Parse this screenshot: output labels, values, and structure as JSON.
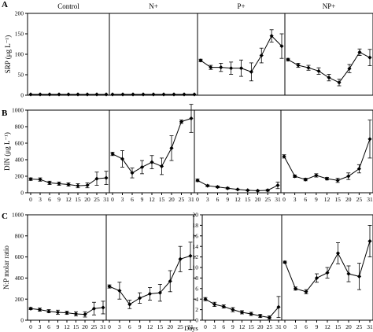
{
  "chart_data": {
    "type": "line",
    "x_ticks": [
      0,
      3,
      6,
      9,
      12,
      15,
      20,
      25,
      31
    ],
    "xlabel": "Days",
    "error_bar_shape": "capped",
    "colors": {
      "line": "#000000",
      "marker": "#000000",
      "frame": "#000000",
      "background": "#ffffff"
    },
    "rows": [
      {
        "label": "A",
        "ylabel": "SRP (μg L⁻¹)",
        "ylim": [
          0,
          200
        ],
        "yticks": [
          0,
          50,
          100,
          150,
          200
        ],
        "panels": [
          {
            "title": "Control",
            "x": [
              0,
              3,
              6,
              9,
              12,
              15,
              20,
              25,
              31
            ],
            "y": [
              2,
              2,
              2,
              2,
              2,
              2,
              2,
              2,
              2
            ],
            "err": [
              0,
              0,
              0,
              0,
              0,
              0,
              0,
              0,
              0
            ]
          },
          {
            "title": "N+",
            "x": [
              0,
              3,
              6,
              9,
              12,
              15,
              20,
              25,
              31
            ],
            "y": [
              2,
              2,
              2,
              2,
              2,
              2,
              2,
              2,
              2
            ],
            "err": [
              0,
              0,
              0,
              0,
              0,
              0,
              0,
              0,
              0
            ]
          },
          {
            "title": "P+",
            "x": [
              0,
              3,
              6,
              9,
              12,
              15,
              20,
              25,
              31
            ],
            "y": [
              85,
              68,
              68,
              66,
              66,
              57,
              97,
              145,
              120
            ],
            "err": [
              3,
              5,
              10,
              15,
              20,
              22,
              18,
              15,
              30
            ]
          },
          {
            "title": "NP+",
            "x": [
              0,
              3,
              6,
              9,
              12,
              15,
              20,
              25,
              31
            ],
            "y": [
              87,
              73,
              67,
              59,
              43,
              31,
              65,
              105,
              92
            ],
            "err": [
              3,
              5,
              6,
              8,
              8,
              8,
              10,
              8,
              20
            ]
          }
        ]
      },
      {
        "label": "B",
        "ylabel": "DIN (μg L⁻¹)",
        "ylim": [
          0,
          1000
        ],
        "yticks": [
          0,
          200,
          400,
          600,
          800,
          1000
        ],
        "panels": [
          {
            "title": "",
            "x": [
              0,
              3,
              6,
              9,
              12,
              15,
              20,
              25,
              31
            ],
            "y": [
              165,
              160,
              120,
              110,
              100,
              85,
              90,
              170,
              180
            ],
            "err": [
              15,
              20,
              20,
              20,
              20,
              25,
              30,
              80,
              80
            ]
          },
          {
            "title": "",
            "x": [
              0,
              3,
              6,
              9,
              12,
              15,
              20,
              25,
              31
            ],
            "y": [
              470,
              410,
              240,
              310,
              370,
              320,
              540,
              860,
              900
            ],
            "err": [
              20,
              100,
              60,
              80,
              80,
              100,
              150,
              20,
              170
            ]
          },
          {
            "title": "",
            "x": [
              0,
              3,
              6,
              9,
              12,
              15,
              20,
              25,
              31
            ],
            "y": [
              150,
              85,
              70,
              55,
              40,
              30,
              25,
              30,
              90
            ],
            "err": [
              15,
              10,
              10,
              10,
              5,
              5,
              5,
              10,
              40
            ]
          },
          {
            "title": "",
            "x": [
              0,
              3,
              6,
              9,
              12,
              15,
              20,
              25,
              31
            ],
            "y": [
              440,
              200,
              160,
              210,
              170,
              150,
              200,
              290,
              650
            ],
            "err": [
              20,
              15,
              15,
              20,
              15,
              25,
              40,
              50,
              230
            ]
          }
        ]
      },
      {
        "label": "C",
        "ylabel": "N:P molar ratio",
        "panels": [
          {
            "title": "",
            "ylim": [
              0,
              1000
            ],
            "yticks": [
              0,
              200,
              400,
              600,
              800,
              1000
            ],
            "x": [
              0,
              3,
              6,
              9,
              12,
              15,
              20,
              25,
              31
            ],
            "y": [
              110,
              100,
              85,
              75,
              70,
              60,
              55,
              110,
              120
            ],
            "err": [
              10,
              15,
              15,
              20,
              15,
              20,
              25,
              60,
              60
            ]
          },
          {
            "title": "",
            "ylim": [
              0,
              1000
            ],
            "yticks": [
              0,
              200,
              400,
              600,
              800,
              1000
            ],
            "x": [
              0,
              3,
              6,
              9,
              12,
              15,
              20,
              25,
              31
            ],
            "y": [
              320,
              280,
              150,
              210,
              250,
              260,
              370,
              580,
              610
            ],
            "err": [
              15,
              80,
              40,
              50,
              60,
              80,
              100,
              120,
              130
            ]
          },
          {
            "title": "",
            "ylim": [
              0,
              20
            ],
            "yticks": [
              0,
              2,
              4,
              6,
              8,
              10,
              12,
              14,
              16,
              18,
              20
            ],
            "x": [
              0,
              3,
              6,
              9,
              12,
              15,
              20,
              25,
              31
            ],
            "y": [
              4,
              3,
              2.6,
              2,
              1.5,
              1.2,
              0.8,
              0.5,
              2.5
            ],
            "err": [
              0.3,
              0.4,
              0.3,
              0.4,
              0.3,
              0.3,
              0.3,
              0.3,
              2
            ]
          },
          {
            "title": "",
            "ylim": [
              0,
              20
            ],
            "yticks": [
              0,
              2,
              4,
              6,
              8,
              10,
              12,
              14,
              16,
              18,
              20
            ],
            "x": [
              0,
              3,
              6,
              9,
              12,
              15,
              20,
              25,
              31
            ],
            "y": [
              11,
              6,
              5.4,
              8,
              9,
              12.7,
              8.8,
              8.3,
              15
            ],
            "err": [
              0.2,
              0.3,
              0.4,
              0.8,
              1,
              2,
              1.5,
              2.5,
              3
            ]
          }
        ]
      }
    ]
  }
}
